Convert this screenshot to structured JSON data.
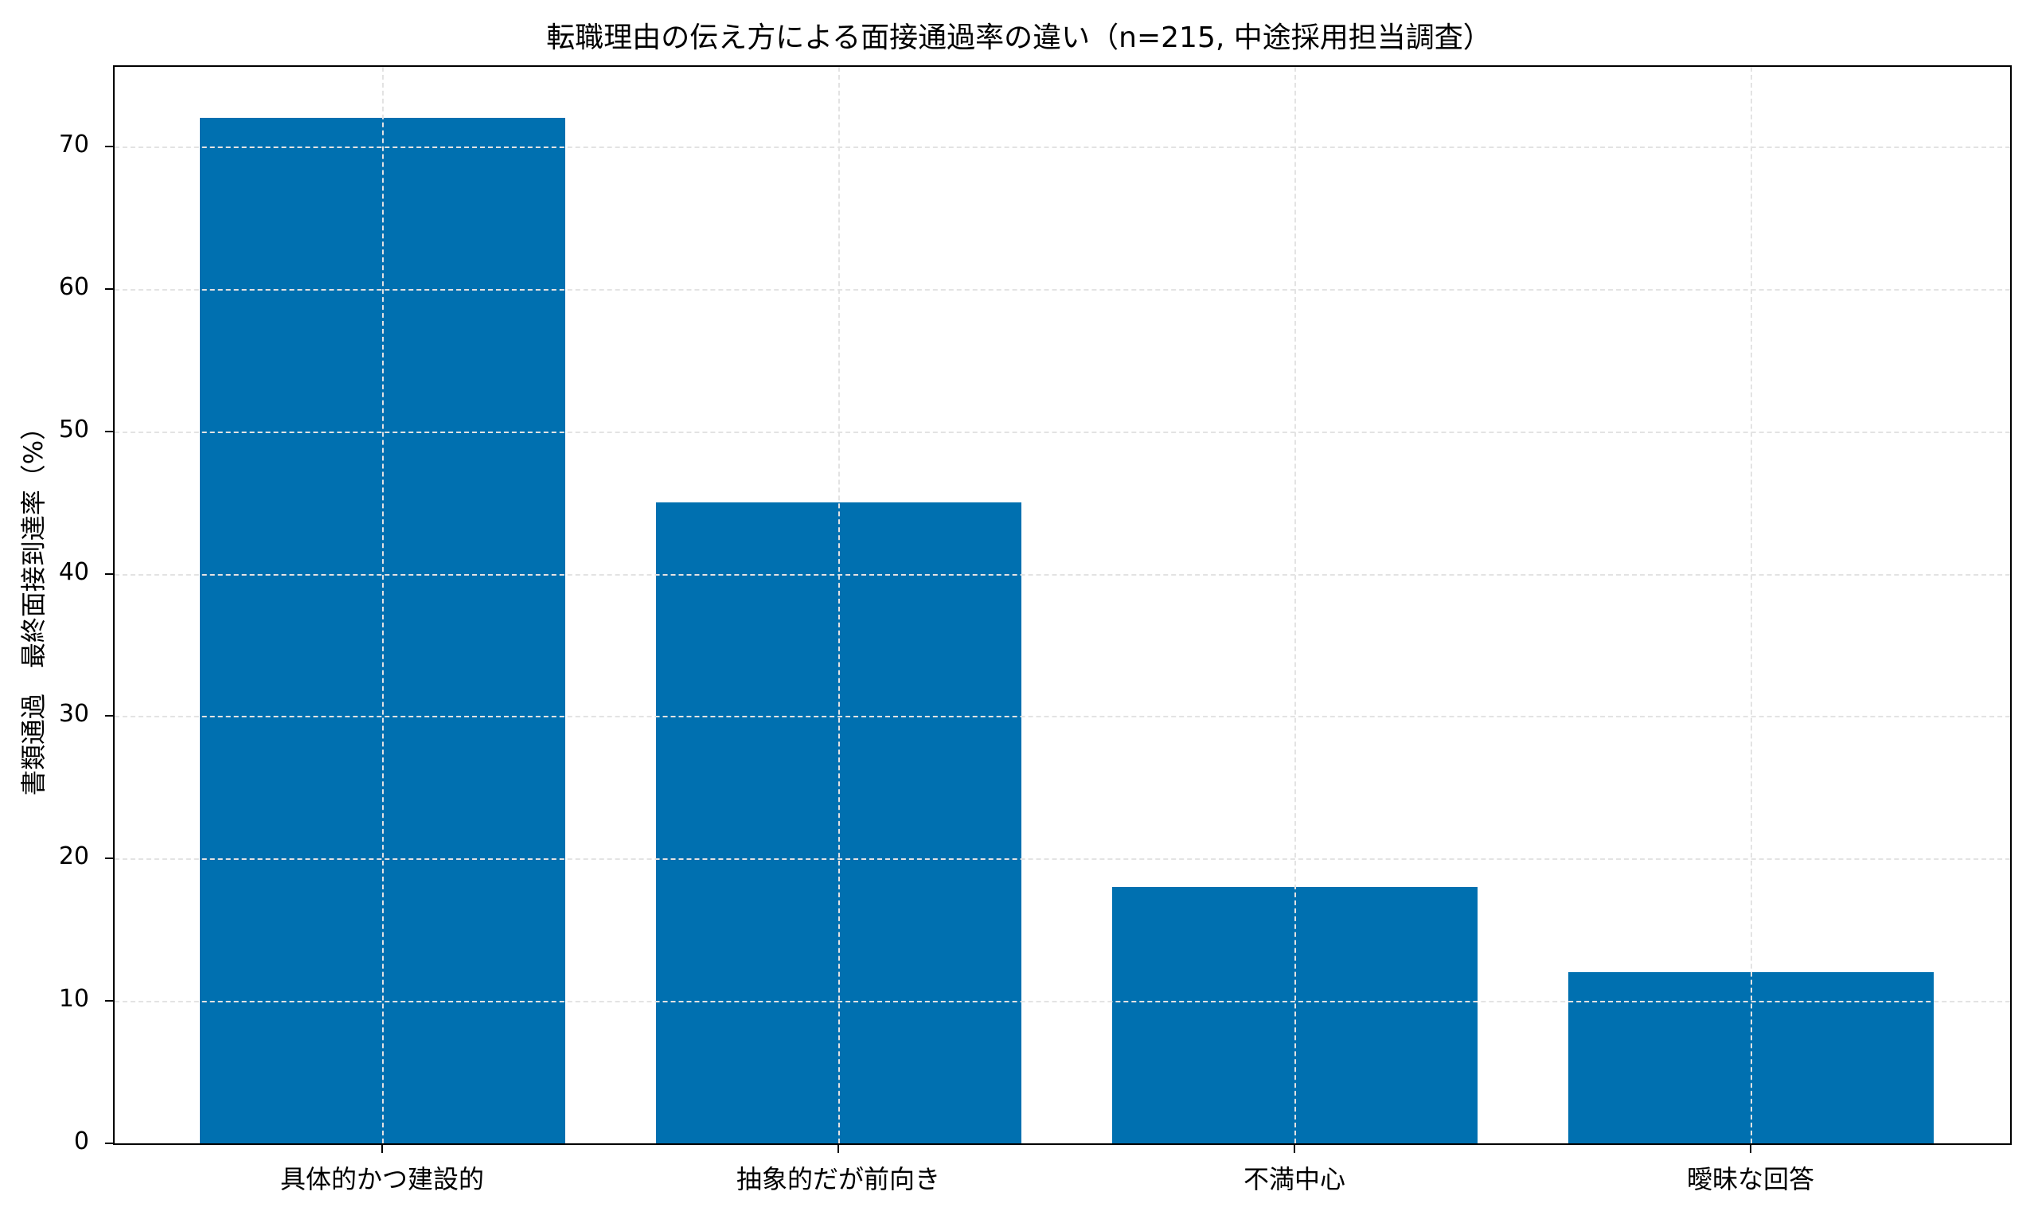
{
  "chart_data": {
    "type": "bar",
    "title": "転職理由の伝え方による面接通過率の違い（n=215, 中途採用担当調査）",
    "xlabel": "",
    "ylabel": "書類通過　最終面接到達率（%）",
    "categories": [
      "具体的かつ建設的",
      "抽象的だが前向き",
      "不満中心",
      "曖昧な回答"
    ],
    "values": [
      72,
      45,
      18,
      12
    ],
    "ylim": [
      0,
      75.6
    ],
    "yticks": [
      0,
      10,
      20,
      30,
      40,
      50,
      60,
      70
    ],
    "grid": true,
    "bar_color": "#0070b0",
    "legend": null
  },
  "ytick_labels": [
    "0",
    "10",
    "20",
    "30",
    "40",
    "50",
    "60",
    "70"
  ]
}
